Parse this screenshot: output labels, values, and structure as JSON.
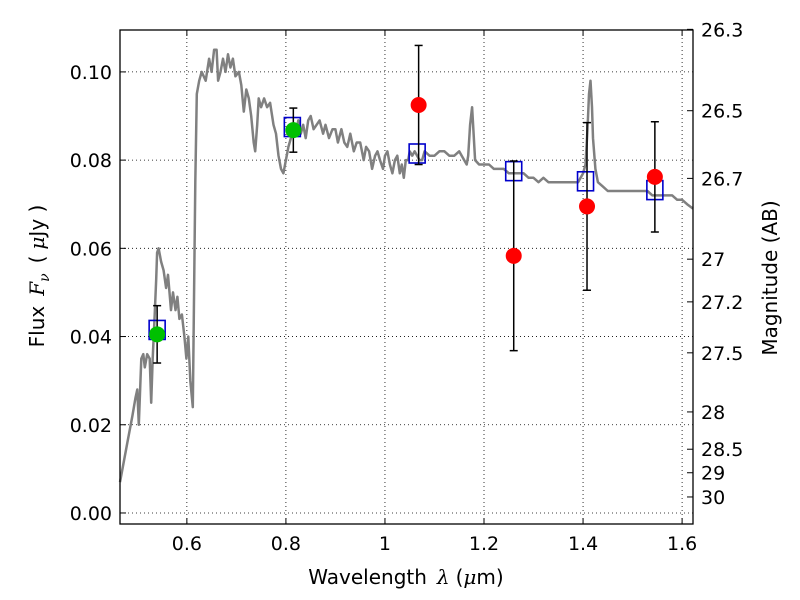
{
  "chart_data": {
    "type": "scatter",
    "xlabel_text": "Wavelength",
    "xlabel_symbol": "λ",
    "xlabel_unit_open": "(",
    "xlabel_unit_mu": "μ",
    "xlabel_unit_rest": "m)",
    "ylabel_text": "Flux",
    "ylabel_symbol": "F",
    "ylabel_subscript": "ν",
    "ylabel_unit_open": "(",
    "ylabel_unit_mu": "μ",
    "ylabel_unit_rest": "Jy )",
    "y2label": "Magnitude (AB)",
    "xlim": [
      0.465,
      1.622
    ],
    "ylim": [
      -0.0025,
      0.1095
    ],
    "grid": true,
    "xticks": [
      0.6,
      0.8,
      1.0,
      1.2,
      1.4,
      1.6
    ],
    "xtick_labels": [
      "0.6",
      "0.8",
      "1",
      "1.2",
      "1.4",
      "1.6"
    ],
    "yticks": [
      0.0,
      0.02,
      0.04,
      0.06,
      0.08,
      0.1
    ],
    "ytick_labels": [
      "0.00",
      "0.02",
      "0.04",
      "0.06",
      "0.08",
      "0.10"
    ],
    "y2ticks": [
      {
        "label": "26.3",
        "mag": 26.3
      },
      {
        "label": "26.5",
        "mag": 26.5
      },
      {
        "label": "26.7",
        "mag": 26.7
      },
      {
        "label": "27",
        "mag": 27.0
      },
      {
        "label": "27.2",
        "mag": 27.2
      },
      {
        "label": "27.5",
        "mag": 27.5
      },
      {
        "label": "28",
        "mag": 28.0
      },
      {
        "label": "28.5",
        "mag": 28.5
      },
      {
        "label": "29",
        "mag": 29.0
      },
      {
        "label": "30",
        "mag": 30.0
      }
    ],
    "colors": {
      "model": "#808080",
      "detected": "#00c000",
      "measured": "#ff0000",
      "model_band": "#0000cc",
      "errorbar": "#000000"
    },
    "series": [
      {
        "name": "model_spectrum",
        "style": "line",
        "points": [
          [
            0.465,
            0.007
          ],
          [
            0.48,
            0.016
          ],
          [
            0.49,
            0.022
          ],
          [
            0.496,
            0.026
          ],
          [
            0.5,
            0.028
          ],
          [
            0.503,
            0.02
          ],
          [
            0.508,
            0.035
          ],
          [
            0.512,
            0.036
          ],
          [
            0.515,
            0.033
          ],
          [
            0.52,
            0.036
          ],
          [
            0.525,
            0.035
          ],
          [
            0.528,
            0.025
          ],
          [
            0.531,
            0.035
          ],
          [
            0.535,
            0.045
          ],
          [
            0.538,
            0.053
          ],
          [
            0.54,
            0.059
          ],
          [
            0.543,
            0.06
          ],
          [
            0.548,
            0.057
          ],
          [
            0.553,
            0.055
          ],
          [
            0.558,
            0.051
          ],
          [
            0.562,
            0.054
          ],
          [
            0.565,
            0.05
          ],
          [
            0.568,
            0.046
          ],
          [
            0.572,
            0.05
          ],
          [
            0.577,
            0.046
          ],
          [
            0.581,
            0.049
          ],
          [
            0.585,
            0.044
          ],
          [
            0.59,
            0.045
          ],
          [
            0.595,
            0.04
          ],
          [
            0.599,
            0.035
          ],
          [
            0.603,
            0.04
          ],
          [
            0.607,
            0.03
          ],
          [
            0.612,
            0.024
          ],
          [
            0.617,
            0.075
          ],
          [
            0.62,
            0.095
          ],
          [
            0.625,
            0.098
          ],
          [
            0.63,
            0.1
          ],
          [
            0.638,
            0.098
          ],
          [
            0.645,
            0.103
          ],
          [
            0.65,
            0.1
          ],
          [
            0.655,
            0.105
          ],
          [
            0.66,
            0.105
          ],
          [
            0.663,
            0.098
          ],
          [
            0.668,
            0.1
          ],
          [
            0.673,
            0.103
          ],
          [
            0.678,
            0.1
          ],
          [
            0.683,
            0.104
          ],
          [
            0.688,
            0.101
          ],
          [
            0.693,
            0.103
          ],
          [
            0.698,
            0.099
          ],
          [
            0.705,
            0.1
          ],
          [
            0.71,
            0.097
          ],
          [
            0.715,
            0.091
          ],
          [
            0.72,
            0.096
          ],
          [
            0.725,
            0.094
          ],
          [
            0.73,
            0.09
          ],
          [
            0.735,
            0.084
          ],
          [
            0.738,
            0.082
          ],
          [
            0.742,
            0.088
          ],
          [
            0.745,
            0.094
          ],
          [
            0.75,
            0.092
          ],
          [
            0.756,
            0.094
          ],
          [
            0.762,
            0.092
          ],
          [
            0.768,
            0.093
          ],
          [
            0.775,
            0.088
          ],
          [
            0.78,
            0.086
          ],
          [
            0.785,
            0.081
          ],
          [
            0.79,
            0.078
          ],
          [
            0.795,
            0.077
          ],
          [
            0.8,
            0.08
          ],
          [
            0.805,
            0.083
          ],
          [
            0.81,
            0.085
          ],
          [
            0.815,
            0.087
          ],
          [
            0.82,
            0.086
          ],
          [
            0.825,
            0.089
          ],
          [
            0.83,
            0.086
          ],
          [
            0.835,
            0.088
          ],
          [
            0.84,
            0.085
          ],
          [
            0.845,
            0.089
          ],
          [
            0.85,
            0.09
          ],
          [
            0.856,
            0.087
          ],
          [
            0.862,
            0.088
          ],
          [
            0.868,
            0.089
          ],
          [
            0.875,
            0.086
          ],
          [
            0.88,
            0.088
          ],
          [
            0.887,
            0.085
          ],
          [
            0.894,
            0.087
          ],
          [
            0.9,
            0.087
          ],
          [
            0.905,
            0.084
          ],
          [
            0.912,
            0.087
          ],
          [
            0.918,
            0.084
          ],
          [
            0.924,
            0.083
          ],
          [
            0.93,
            0.086
          ],
          [
            0.937,
            0.082
          ],
          [
            0.943,
            0.084
          ],
          [
            0.95,
            0.084
          ],
          [
            0.957,
            0.08
          ],
          [
            0.962,
            0.083
          ],
          [
            0.968,
            0.082
          ],
          [
            0.974,
            0.078
          ],
          [
            0.98,
            0.081
          ],
          [
            0.985,
            0.082
          ],
          [
            0.99,
            0.08
          ],
          [
            0.996,
            0.078
          ],
          [
            1.0,
            0.081
          ],
          [
            1.005,
            0.082
          ],
          [
            1.01,
            0.079
          ],
          [
            1.015,
            0.077
          ],
          [
            1.02,
            0.08
          ],
          [
            1.025,
            0.081
          ],
          [
            1.03,
            0.077
          ],
          [
            1.034,
            0.079
          ],
          [
            1.038,
            0.076
          ],
          [
            1.042,
            0.08
          ],
          [
            1.047,
            0.08
          ],
          [
            1.05,
            0.082
          ],
          [
            1.055,
            0.081
          ],
          [
            1.06,
            0.082
          ],
          [
            1.065,
            0.081
          ],
          [
            1.07,
            0.08
          ],
          [
            1.075,
            0.08
          ],
          [
            1.08,
            0.082
          ],
          [
            1.09,
            0.081
          ],
          [
            1.1,
            0.081
          ],
          [
            1.11,
            0.082
          ],
          [
            1.12,
            0.082
          ],
          [
            1.13,
            0.081
          ],
          [
            1.14,
            0.081
          ],
          [
            1.15,
            0.082
          ],
          [
            1.155,
            0.081
          ],
          [
            1.16,
            0.08
          ],
          [
            1.165,
            0.079
          ],
          [
            1.168,
            0.081
          ],
          [
            1.172,
            0.088
          ],
          [
            1.176,
            0.092
          ],
          [
            1.178,
            0.088
          ],
          [
            1.182,
            0.08
          ],
          [
            1.19,
            0.079
          ],
          [
            1.2,
            0.079
          ],
          [
            1.21,
            0.079
          ],
          [
            1.22,
            0.078
          ],
          [
            1.23,
            0.078
          ],
          [
            1.24,
            0.078
          ],
          [
            1.25,
            0.077
          ],
          [
            1.26,
            0.077
          ],
          [
            1.27,
            0.077
          ],
          [
            1.28,
            0.077
          ],
          [
            1.29,
            0.076
          ],
          [
            1.3,
            0.076
          ],
          [
            1.31,
            0.075
          ],
          [
            1.32,
            0.076
          ],
          [
            1.33,
            0.075
          ],
          [
            1.34,
            0.075
          ],
          [
            1.35,
            0.075
          ],
          [
            1.36,
            0.075
          ],
          [
            1.37,
            0.075
          ],
          [
            1.38,
            0.075
          ],
          [
            1.39,
            0.075
          ],
          [
            1.395,
            0.076
          ],
          [
            1.4,
            0.077
          ],
          [
            1.405,
            0.079
          ],
          [
            1.409,
            0.087
          ],
          [
            1.412,
            0.095
          ],
          [
            1.415,
            0.098
          ],
          [
            1.418,
            0.092
          ],
          [
            1.42,
            0.085
          ],
          [
            1.425,
            0.078
          ],
          [
            1.43,
            0.075
          ],
          [
            1.44,
            0.074
          ],
          [
            1.45,
            0.073
          ],
          [
            1.46,
            0.073
          ],
          [
            1.47,
            0.073
          ],
          [
            1.48,
            0.073
          ],
          [
            1.49,
            0.073
          ],
          [
            1.5,
            0.073
          ],
          [
            1.51,
            0.073
          ],
          [
            1.52,
            0.073
          ],
          [
            1.53,
            0.073
          ],
          [
            1.54,
            0.072
          ],
          [
            1.55,
            0.072
          ],
          [
            1.56,
            0.072
          ],
          [
            1.57,
            0.072
          ],
          [
            1.58,
            0.072
          ],
          [
            1.59,
            0.071
          ],
          [
            1.6,
            0.071
          ],
          [
            1.61,
            0.07
          ],
          [
            1.622,
            0.069
          ]
        ]
      },
      {
        "name": "detected_photometry",
        "style": "circle",
        "points": [
          {
            "x": 0.54,
            "y": 0.0405,
            "err": 0.0065
          },
          {
            "x": 0.815,
            "y": 0.0868,
            "err": 0.005
          }
        ]
      },
      {
        "name": "measured_photometry",
        "style": "circle",
        "points": [
          {
            "x": 1.068,
            "y": 0.0925,
            "err": 0.0135
          },
          {
            "x": 1.26,
            "y": 0.0583,
            "err": 0.0215
          },
          {
            "x": 1.408,
            "y": 0.0695,
            "err": 0.019
          },
          {
            "x": 1.545,
            "y": 0.0762,
            "err": 0.0125
          }
        ]
      },
      {
        "name": "model_band_flux",
        "style": "open-square",
        "points": [
          {
            "x": 0.54,
            "y": 0.0415
          },
          {
            "x": 0.813,
            "y": 0.0875
          },
          {
            "x": 1.065,
            "y": 0.0815
          },
          {
            "x": 1.26,
            "y": 0.0775
          },
          {
            "x": 1.405,
            "y": 0.0752
          },
          {
            "x": 1.545,
            "y": 0.0732
          }
        ]
      }
    ]
  }
}
